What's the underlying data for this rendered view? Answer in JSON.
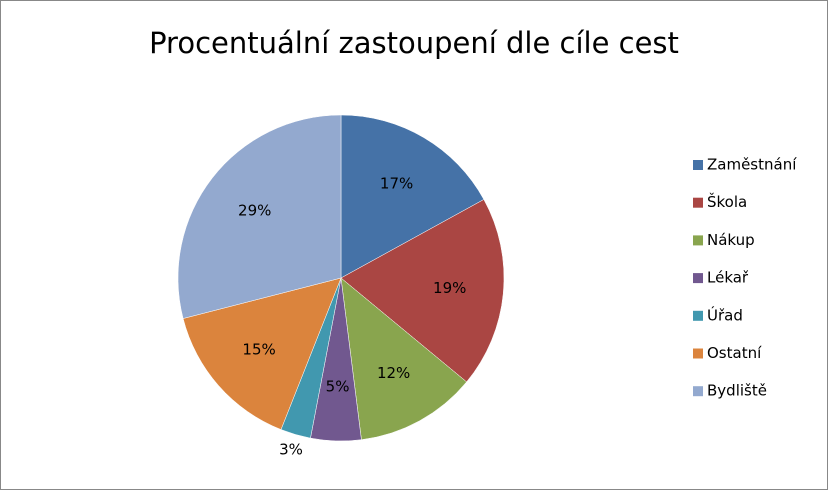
{
  "chart_data": {
    "type": "pie",
    "title": "Procentuální zastoupení dle cíle cest",
    "categories": [
      "Zaměstnání",
      "Škola",
      "Nákup",
      "Lékař",
      "Úřad",
      "Ostatní",
      "Bydliště"
    ],
    "values": [
      17,
      19,
      12,
      5,
      3,
      15,
      29
    ],
    "value_labels": [
      "17%",
      "19%",
      "12%",
      "5%",
      "3%",
      "15%",
      "29%"
    ],
    "colors": [
      "#4572a7",
      "#aa4643",
      "#89a54e",
      "#71588f",
      "#4198af",
      "#db843d",
      "#93a9cf"
    ],
    "legend": "right"
  }
}
